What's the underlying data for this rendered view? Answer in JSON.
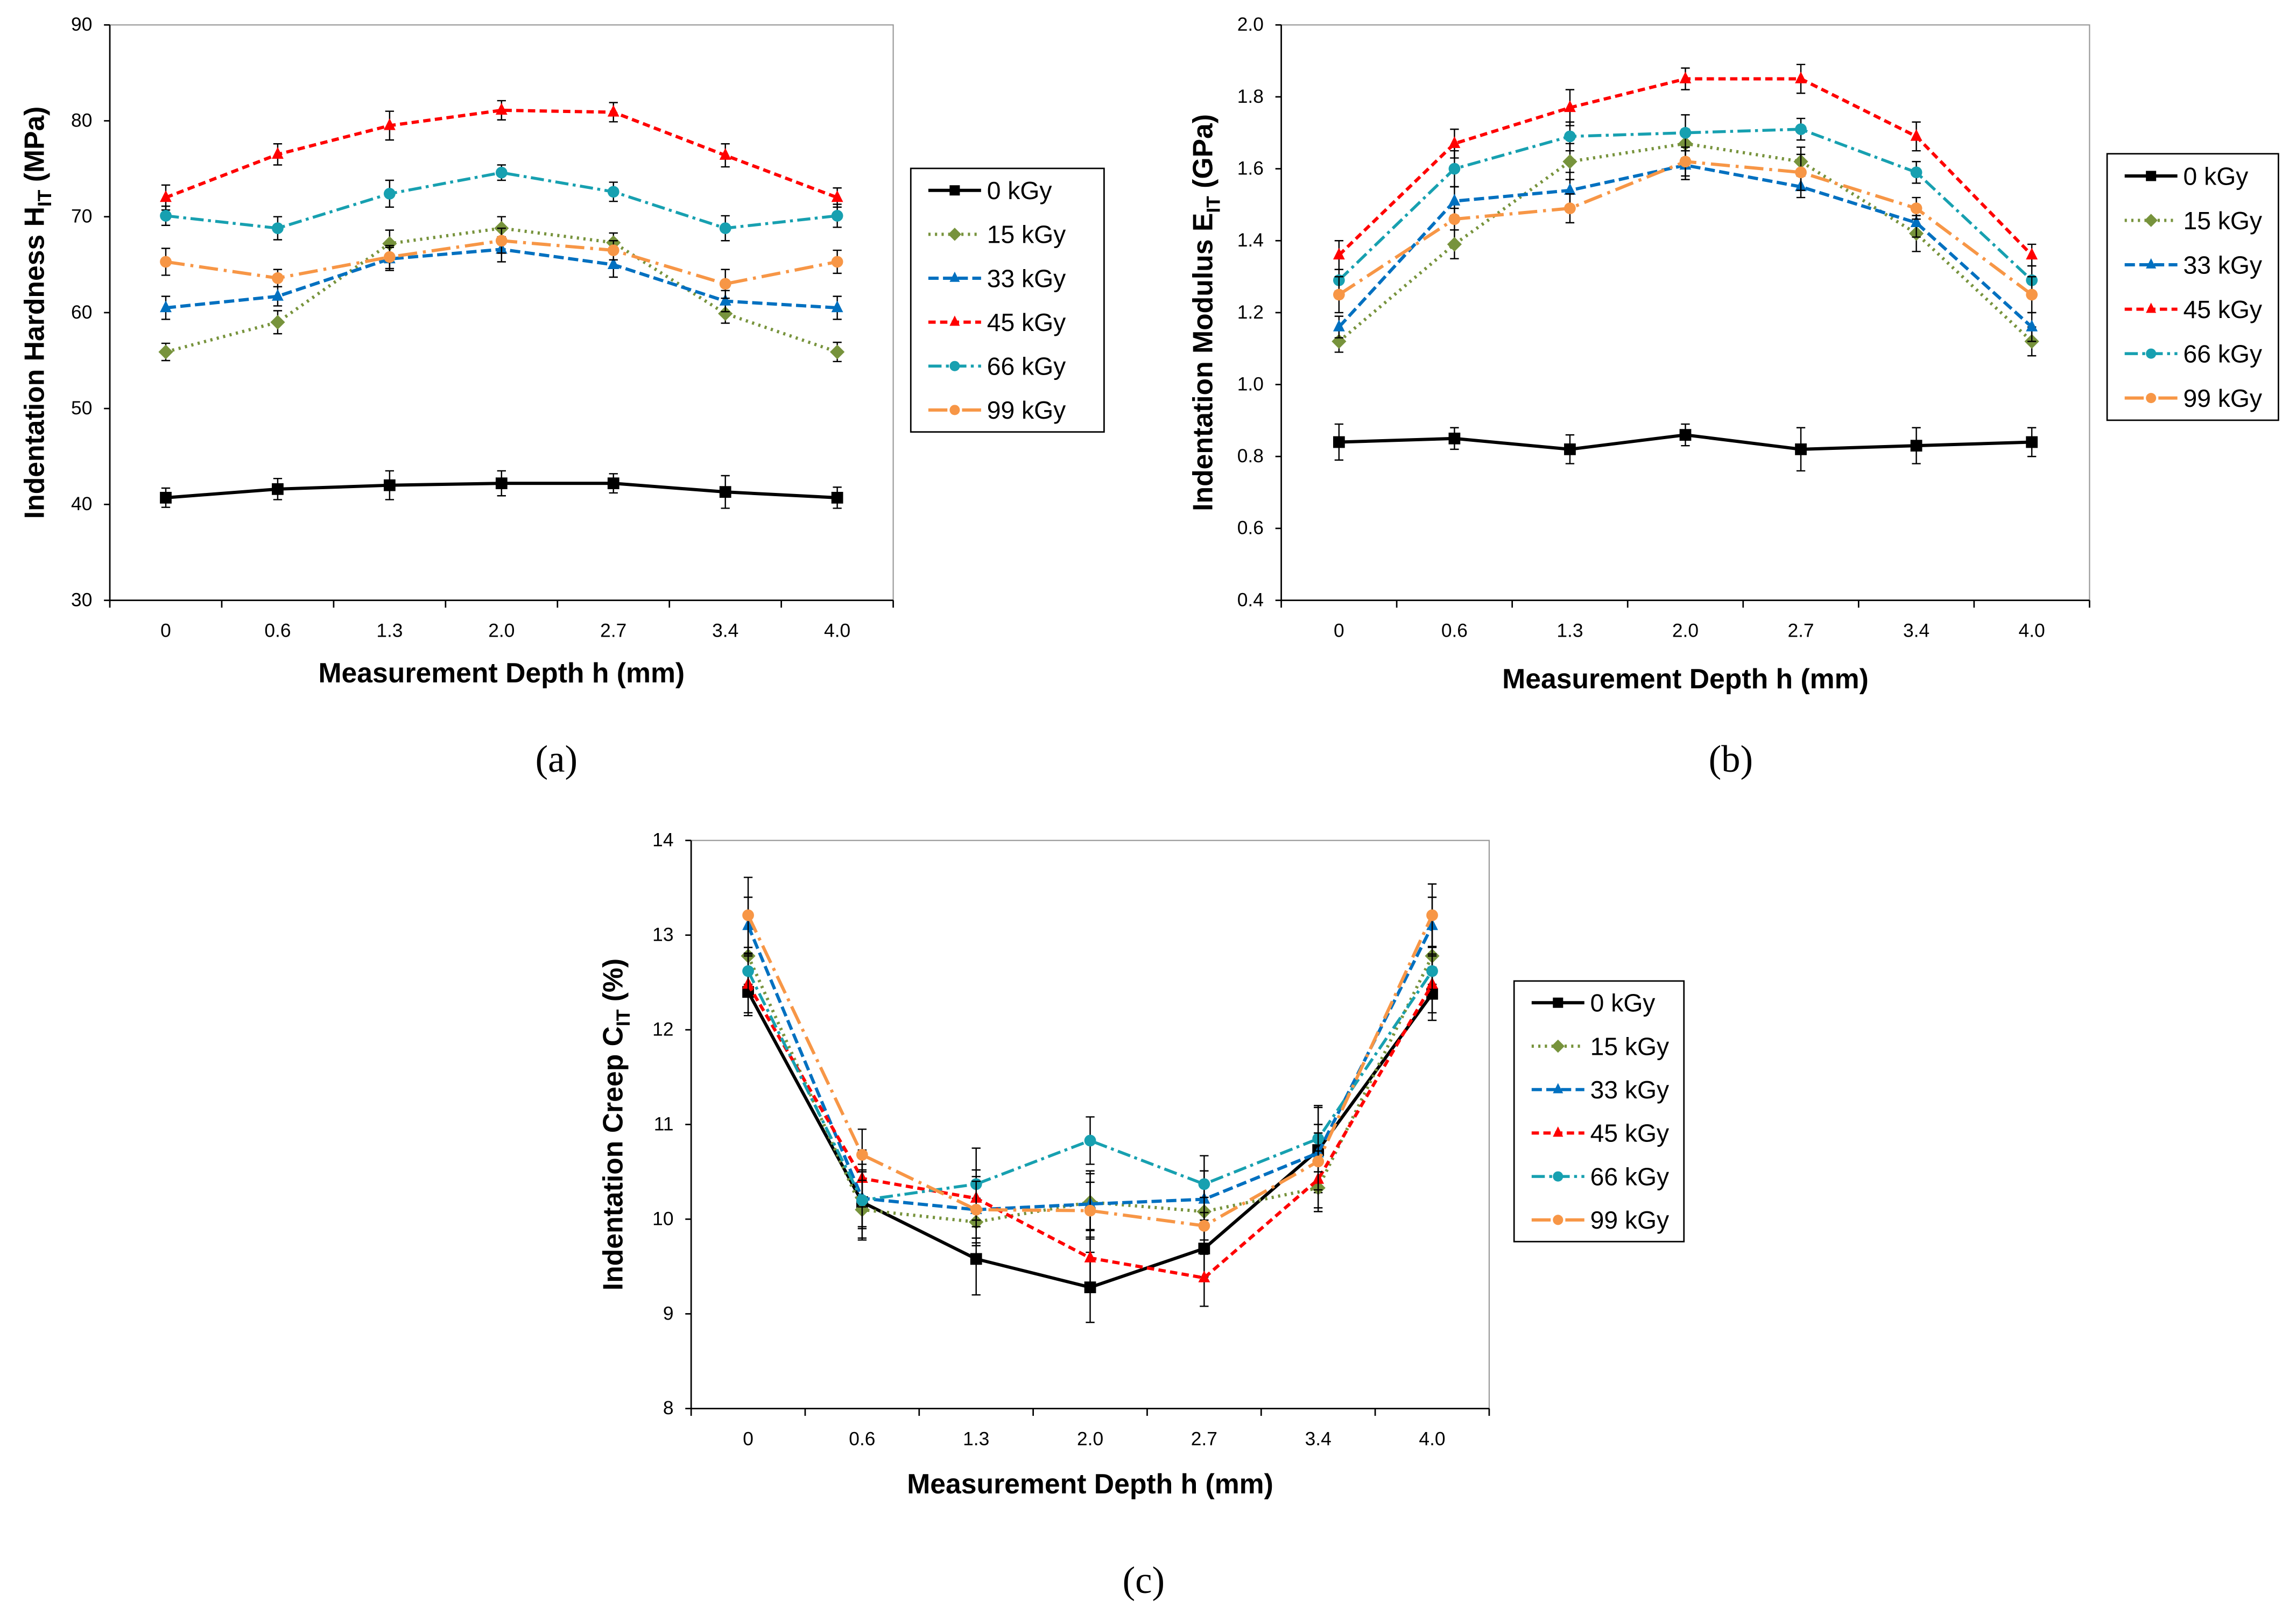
{
  "colors": {
    "0 kGy": "#000000",
    "15 kGy": "#77933C",
    "33 kGy": "#0070C0",
    "45 kGy": "#FF0000",
    "66 kGy": "#17A0B0",
    "99 kGy": "#F79646"
  },
  "chart_data": [
    {
      "id": "a",
      "caption": "(a)",
      "type": "line",
      "xlabel": "Measurement Depth h (mm)",
      "ylabel": {
        "main": "Indentation Hardness H",
        "sub": "IT",
        "unit": " (MPa)"
      },
      "categories": [
        "0",
        "0.6",
        "1.3",
        "2.0",
        "2.7",
        "3.4",
        "4.0"
      ],
      "ylim": [
        30,
        90
      ],
      "yticks": [
        30,
        40,
        50,
        60,
        70,
        80,
        90
      ],
      "ytick_decimals": 0,
      "legend": "right",
      "series": [
        {
          "name": "0 kGy",
          "values": [
            40.7,
            41.6,
            42.0,
            42.2,
            42.2,
            41.3,
            40.7
          ],
          "err": [
            1.0,
            1.1,
            1.5,
            1.3,
            1.0,
            1.7,
            1.1
          ]
        },
        {
          "name": "15 kGy",
          "values": [
            55.9,
            59.0,
            67.2,
            68.8,
            67.3,
            59.9,
            55.9
          ],
          "err": [
            0.9,
            1.2,
            1.4,
            1.2,
            1.0,
            1.0,
            1.0
          ]
        },
        {
          "name": "33 kGy",
          "values": [
            60.5,
            61.7,
            65.6,
            66.6,
            65.0,
            61.2,
            60.5
          ],
          "err": [
            1.2,
            1.0,
            1.2,
            1.3,
            1.3,
            1.1,
            1.2
          ]
        },
        {
          "name": "45 kGy",
          "values": [
            72.0,
            76.5,
            79.5,
            81.1,
            80.9,
            76.4,
            72.0
          ],
          "err": [
            1.3,
            1.1,
            1.5,
            1.0,
            1.0,
            1.2,
            1.0
          ]
        },
        {
          "name": "66 kGy",
          "values": [
            70.1,
            68.8,
            72.4,
            74.6,
            72.6,
            68.8,
            70.1
          ],
          "err": [
            1.0,
            1.2,
            1.4,
            0.8,
            1.0,
            1.3,
            1.2
          ]
        },
        {
          "name": "99 kGy",
          "values": [
            65.3,
            63.6,
            65.8,
            67.5,
            66.5,
            63.0,
            65.3
          ],
          "err": [
            1.4,
            0.9,
            1.2,
            1.3,
            1.0,
            1.5,
            1.2
          ]
        }
      ]
    },
    {
      "id": "b",
      "caption": "(b)",
      "type": "line",
      "xlabel": "Measurement Depth h (mm)",
      "ylabel": {
        "main": "Indentation Modulus E",
        "sub": "IT",
        "unit": " (GPa)"
      },
      "categories": [
        "0",
        "0.6",
        "1.3",
        "2.0",
        "2.7",
        "3.4",
        "4.0"
      ],
      "ylim": [
        0.4,
        2.0
      ],
      "yticks": [
        0.4,
        0.6,
        0.8,
        1.0,
        1.2,
        1.4,
        1.6,
        1.8,
        2.0
      ],
      "ytick_decimals": 1,
      "legend": "right",
      "series": [
        {
          "name": "0 kGy",
          "values": [
            0.84,
            0.85,
            0.82,
            0.86,
            0.82,
            0.83,
            0.84
          ],
          "err": [
            0.05,
            0.03,
            0.04,
            0.03,
            0.06,
            0.05,
            0.04
          ]
        },
        {
          "name": "15 kGy",
          "values": [
            1.12,
            1.39,
            1.62,
            1.67,
            1.62,
            1.42,
            1.12
          ],
          "err": [
            0.03,
            0.04,
            0.05,
            0.04,
            0.04,
            0.05,
            0.04
          ]
        },
        {
          "name": "33 kGy",
          "values": [
            1.16,
            1.51,
            1.54,
            1.61,
            1.55,
            1.45,
            1.16
          ],
          "err": [
            0.03,
            0.04,
            0.05,
            0.04,
            0.03,
            0.04,
            0.04
          ]
        },
        {
          "name": "45 kGy",
          "values": [
            1.36,
            1.67,
            1.77,
            1.85,
            1.85,
            1.69,
            1.36
          ],
          "err": [
            0.04,
            0.04,
            0.05,
            0.03,
            0.04,
            0.04,
            0.03
          ]
        },
        {
          "name": "66 kGy",
          "values": [
            1.29,
            1.6,
            1.69,
            1.7,
            1.71,
            1.59,
            1.29
          ],
          "err": [
            0.03,
            0.05,
            0.04,
            0.05,
            0.03,
            0.03,
            0.04
          ]
        },
        {
          "name": "99 kGy",
          "values": [
            1.25,
            1.46,
            1.49,
            1.62,
            1.59,
            1.49,
            1.25
          ],
          "err": [
            0.05,
            0.03,
            0.04,
            0.04,
            0.05,
            0.03,
            0.05
          ]
        }
      ]
    },
    {
      "id": "c",
      "caption": "(c)",
      "type": "line",
      "xlabel": "Measurement Depth h (mm)",
      "ylabel": {
        "main": "Indentation Creep C",
        "sub": "IT",
        "unit": " (%)"
      },
      "categories": [
        "0",
        "0.6",
        "1.3",
        "2.0",
        "2.7",
        "3.4",
        "4.0"
      ],
      "ylim": [
        8,
        14
      ],
      "yticks": [
        8,
        9,
        10,
        11,
        12,
        13,
        14
      ],
      "ytick_decimals": 0,
      "legend": "right",
      "series": [
        {
          "name": "0 kGy",
          "values": [
            12.4,
            10.18,
            9.58,
            9.28,
            9.69,
            10.73,
            12.38
          ],
          "err": [
            0.25,
            0.4,
            0.38,
            0.37,
            0.3,
            0.45,
            0.28
          ]
        },
        {
          "name": "15 kGy",
          "values": [
            12.78,
            10.1,
            9.97,
            10.18,
            10.08,
            10.33,
            12.78
          ],
          "err": [
            0.3,
            0.3,
            0.25,
            0.3,
            0.3,
            0.25,
            0.3
          ]
        },
        {
          "name": "33 kGy",
          "values": [
            13.1,
            10.22,
            10.1,
            10.16,
            10.21,
            10.7,
            13.1
          ],
          "err": [
            0.3,
            0.3,
            0.35,
            0.35,
            0.3,
            0.3,
            0.3
          ]
        },
        {
          "name": "45 kGy",
          "values": [
            12.48,
            10.43,
            10.22,
            9.59,
            9.38,
            10.42,
            12.48
          ],
          "err": [
            0.3,
            0.3,
            0.3,
            0.3,
            0.3,
            0.3,
            0.3
          ]
        },
        {
          "name": "66 kGy",
          "values": [
            12.62,
            10.2,
            10.37,
            10.83,
            10.37,
            10.85,
            12.62
          ],
          "err": [
            0.25,
            0.3,
            0.38,
            0.25,
            0.3,
            0.35,
            0.25
          ]
        },
        {
          "name": "99 kGy",
          "values": [
            13.21,
            10.68,
            10.1,
            10.09,
            9.93,
            10.61,
            13.21
          ],
          "err": [
            0.4,
            0.27,
            0.3,
            0.3,
            0.3,
            0.3,
            0.33
          ]
        }
      ]
    }
  ]
}
